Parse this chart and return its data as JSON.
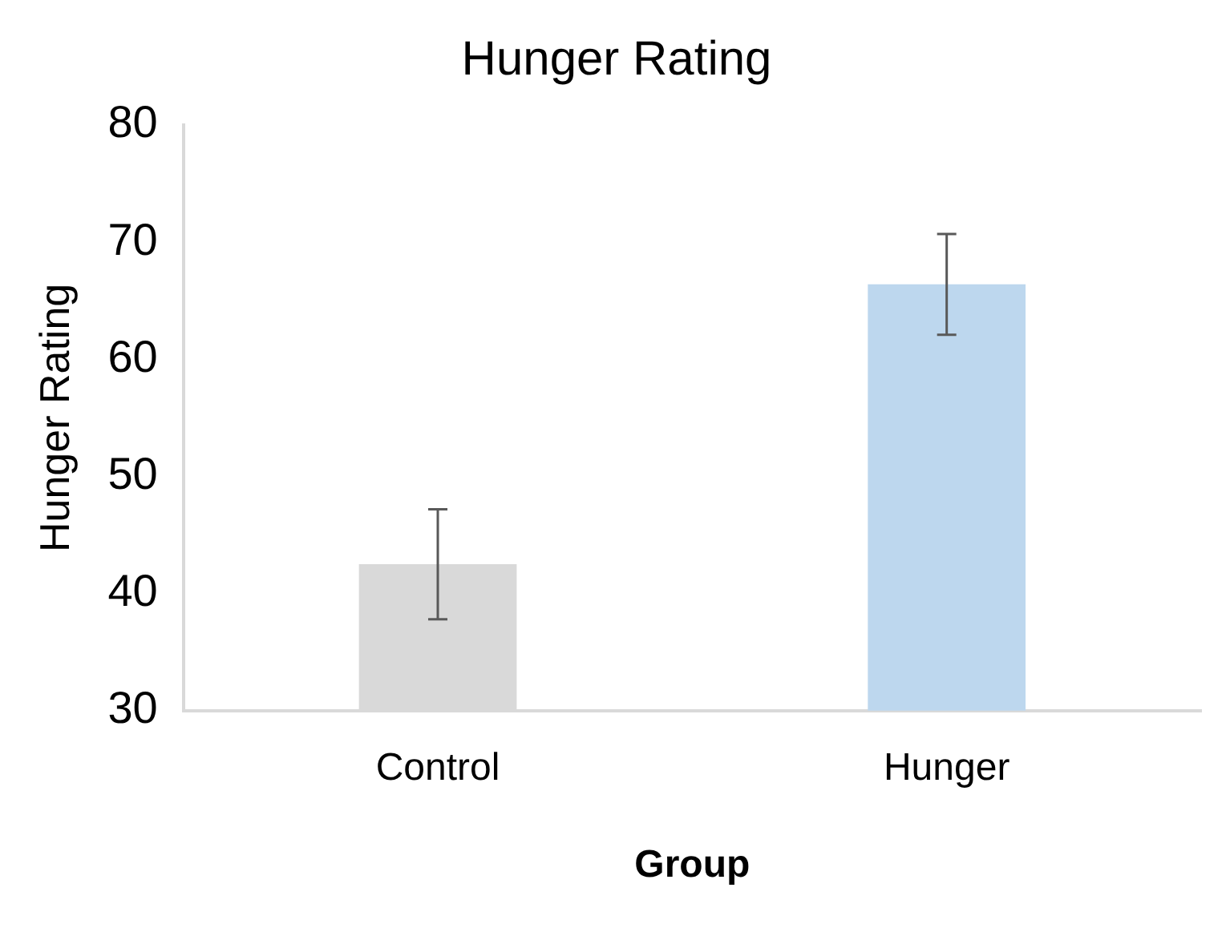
{
  "chart_data": {
    "type": "bar",
    "title": "Hunger Rating",
    "xlabel": "Group",
    "ylabel": "Hunger Rating",
    "categories": [
      "Control",
      "Hunger"
    ],
    "values": [
      42.5,
      66.4
    ],
    "colors": [
      "#d9d9d9",
      "#bdd7ee"
    ],
    "errors": [
      4.7,
      4.3
    ],
    "ylim": [
      30,
      80
    ],
    "yticks": [
      30,
      40,
      50,
      60,
      70,
      80
    ],
    "grid": false,
    "legend": false
  }
}
